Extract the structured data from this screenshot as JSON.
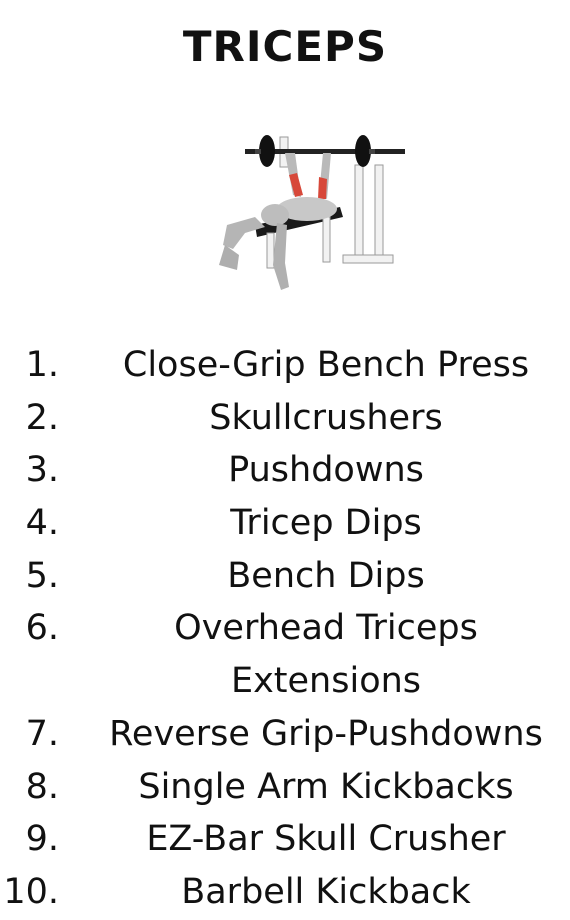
{
  "title": "TRICEPS",
  "image_icon": "bench-press-figure-icon",
  "colors": {
    "muscle": "#d7483a",
    "skin": "#b9b9b9",
    "bench": "#1a1a1a",
    "bar": "#222222"
  },
  "exercises": [
    {
      "num": "1.",
      "lines": [
        "Close-Grip Bench Press"
      ]
    },
    {
      "num": "2.",
      "lines": [
        "Skullcrushers"
      ]
    },
    {
      "num": "3.",
      "lines": [
        "Pushdowns"
      ]
    },
    {
      "num": "4.",
      "lines": [
        "Tricep Dips"
      ]
    },
    {
      "num": "5.",
      "lines": [
        "Bench Dips"
      ]
    },
    {
      "num": "6.",
      "lines": [
        "Overhead Triceps",
        "Extensions"
      ]
    },
    {
      "num": "7.",
      "lines": [
        "Reverse Grip-Pushdowns"
      ]
    },
    {
      "num": "8.",
      "lines": [
        "Single Arm Kickbacks"
      ]
    },
    {
      "num": "9.",
      "lines": [
        "EZ-Bar Skull Crusher"
      ]
    },
    {
      "num": "10.",
      "lines": [
        "Barbell Kickback"
      ]
    }
  ]
}
